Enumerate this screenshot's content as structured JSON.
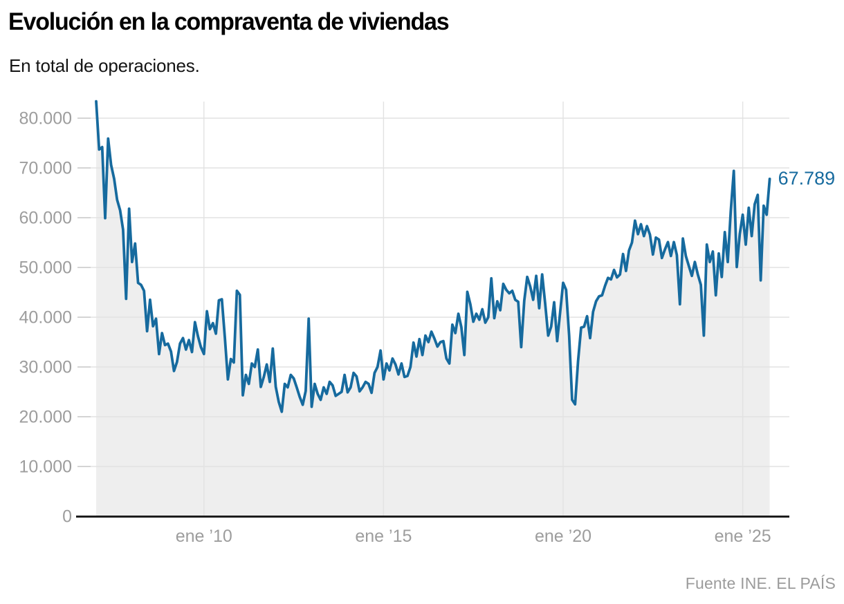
{
  "header": {
    "title": "Evolución en la compraventa de viviendas",
    "subtitle": "En total de operaciones."
  },
  "footer": {
    "source": "Fuente INE. EL PAÍS"
  },
  "colors": {
    "line": "#166a9e",
    "area_fill": "#eeeeee",
    "gridline": "#e2e2e2",
    "tick": "#c6c6c6",
    "axis": "#1d1d1d",
    "axis_label": "#9d9d9d",
    "value_label": "#166a9e"
  },
  "chart_data": {
    "type": "line",
    "title": "Evolución en la compraventa de viviendas",
    "subtitle": "En total de operaciones.",
    "unit": "operaciones",
    "frequency": "monthly",
    "start_month": "ene 2007",
    "grid": true,
    "legend": "none",
    "ylim": [
      0,
      83500
    ],
    "y_ticks": [
      0,
      10000,
      20000,
      30000,
      40000,
      50000,
      60000,
      70000,
      80000
    ],
    "y_tick_labels": [
      "0",
      "10.000",
      "20.000",
      "30.000",
      "40.000",
      "50.000",
      "60.000",
      "70.000",
      "80.000"
    ],
    "x_tick_labels": [
      "ene ’10",
      "ene ’15",
      "ene ’20",
      "ene ’25"
    ],
    "x_tick_month_index": [
      36,
      96,
      156,
      216
    ],
    "last_value": 67789,
    "last_value_label": "67.789",
    "values": [
      83385,
      73700,
      74200,
      59900,
      75900,
      70600,
      67800,
      63600,
      61500,
      57600,
      43700,
      61800,
      51100,
      54800,
      46900,
      46500,
      45300,
      37200,
      43500,
      38200,
      39700,
      32600,
      36800,
      34400,
      34700,
      33100,
      29200,
      31000,
      34700,
      35800,
      33500,
      35400,
      33000,
      39000,
      36200,
      34000,
      32600,
      41200,
      37600,
      38800,
      36700,
      43400,
      43600,
      35800,
      27500,
      31600,
      30900,
      45300,
      44500,
      24300,
      28400,
      26600,
      30700,
      30000,
      33500,
      26000,
      28000,
      30500,
      27000,
      33700,
      26000,
      23000,
      21000,
      26600,
      25900,
      28400,
      27700,
      25900,
      24000,
      22400,
      25200,
      39700,
      22000,
      26600,
      24600,
      23400,
      25900,
      24600,
      27000,
      26300,
      24200,
      24600,
      25000,
      28400,
      24900,
      25900,
      28800,
      28100,
      25100,
      25900,
      27000,
      26600,
      24800,
      28800,
      30000,
      33300,
      27500,
      30700,
      29300,
      31700,
      30500,
      28500,
      30700,
      28000,
      28200,
      30000,
      34900,
      32100,
      35600,
      32400,
      36300,
      35000,
      37100,
      35700,
      34100,
      35000,
      35200,
      31700,
      30700,
      38500,
      36800,
      40700,
      38000,
      32400,
      45100,
      42600,
      39100,
      40700,
      39500,
      41600,
      38900,
      40000,
      47800,
      39800,
      43200,
      41400,
      46700,
      45500,
      44800,
      45300,
      43500,
      43100,
      34000,
      43300,
      48100,
      46200,
      43500,
      48300,
      41800,
      48600,
      42800,
      36300,
      38100,
      43000,
      35200,
      41000,
      46900,
      45500,
      36300,
      23400,
      22500,
      31200,
      37900,
      38100,
      40200,
      35800,
      41100,
      43200,
      44200,
      44400,
      46300,
      47900,
      47600,
      49500,
      48000,
      48600,
      52700,
      49300,
      53400,
      55000,
      59400,
      56700,
      58700,
      56300,
      58300,
      56600,
      52600,
      56000,
      55600,
      51900,
      53600,
      55100,
      52300,
      55100,
      52500,
      42600,
      55800,
      52300,
      50300,
      48300,
      51100,
      48600,
      46500,
      36300,
      54600,
      51100,
      53200,
      44400,
      52800,
      48100,
      57100,
      51100,
      61300,
      69400,
      50100,
      56700,
      60600,
      54600,
      62000,
      56300,
      62700,
      64600,
      47400,
      62400,
      60600,
      67789
    ]
  }
}
